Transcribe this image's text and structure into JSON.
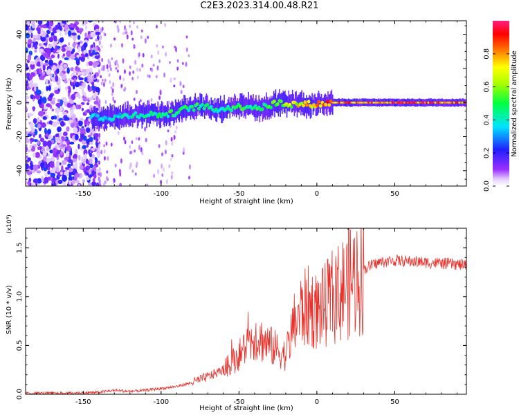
{
  "figure": {
    "title": "C2E3.2023.314.00.48.R21"
  },
  "chart_data": [
    {
      "type": "heatmap",
      "title": "C2E3.2023.314.00.48.R21",
      "xlabel": "Height of straight line (km)",
      "ylabel": "Frequency (Hz)",
      "xlim": [
        -187,
        96
      ],
      "ylim": [
        -49,
        48
      ],
      "xticks": [
        -150,
        -100,
        -50,
        0,
        50
      ],
      "yticks": [
        -40,
        -20,
        0,
        20,
        40
      ],
      "grid": false,
      "colorbar": {
        "label": "Normalized spectral amplitude",
        "range": [
          0,
          1
        ],
        "ticks": [
          "0.0",
          "0.2",
          "0.4",
          "0.6",
          "0.8"
        ],
        "colormap": "rainbow (violet-blue-cyan-green-yellow-red-magenta)"
      },
      "signal_ridge": {
        "x": [
          -145,
          -135,
          -125,
          -115,
          -105,
          -95,
          -85,
          -75,
          -65,
          -55,
          -45,
          -35,
          -25,
          -15,
          -5,
          0,
          10,
          20,
          40,
          60,
          80,
          96
        ],
        "y": [
          -8,
          -9,
          -8,
          -7,
          -7,
          -7,
          -4,
          -2,
          -4,
          -3,
          -2,
          -3,
          0,
          -1,
          -1,
          -1,
          0,
          0,
          0,
          0,
          0,
          0
        ],
        "amplitude": [
          0.35,
          0.4,
          0.4,
          0.45,
          0.45,
          0.5,
          0.5,
          0.5,
          0.45,
          0.5,
          0.5,
          0.55,
          0.6,
          0.7,
          0.8,
          0.85,
          0.9,
          0.9,
          0.9,
          0.9,
          0.88,
          0.85
        ]
      },
      "noise_region_x": [
        -187,
        -140
      ],
      "colors": {
        "background": "#ffffff",
        "axes": "#000000"
      }
    },
    {
      "type": "line",
      "xlabel": "Height of straight line (km)",
      "ylabel": "SNR (10 * v/v)",
      "y_multiplier": "(x10⁴)",
      "xlim": [
        -187,
        96
      ],
      "ylim": [
        0,
        1.7
      ],
      "xticks": [
        -150,
        -100,
        -50,
        0,
        50
      ],
      "yticks": [
        "0.0",
        "0.5",
        "1.0",
        "1.5"
      ],
      "grid": false,
      "series": [
        {
          "color": "#e8302a",
          "x": [
            -187,
            -175,
            -160,
            -150,
            -140,
            -130,
            -120,
            -110,
            -100,
            -90,
            -80,
            -70,
            -60,
            -55,
            -50,
            -45,
            -40,
            -35,
            -30,
            -25,
            -20,
            -15,
            -10,
            -5,
            0,
            5,
            10,
            15,
            20,
            25,
            30,
            35,
            40,
            45,
            50,
            60,
            70,
            80,
            90,
            96
          ],
          "y": [
            0.01,
            0.01,
            0.01,
            0.015,
            0.02,
            0.04,
            0.03,
            0.04,
            0.06,
            0.08,
            0.12,
            0.18,
            0.25,
            0.32,
            0.4,
            0.5,
            0.6,
            0.55,
            0.5,
            0.45,
            0.4,
            0.7,
            0.85,
            0.9,
            0.85,
            0.9,
            1.0,
            1.05,
            1.15,
            1.2,
            1.28,
            1.32,
            1.35,
            1.36,
            1.37,
            1.36,
            1.35,
            1.34,
            1.33,
            1.32
          ]
        }
      ],
      "colors": {
        "line": "#e8302a",
        "background": "#ffffff"
      }
    }
  ]
}
